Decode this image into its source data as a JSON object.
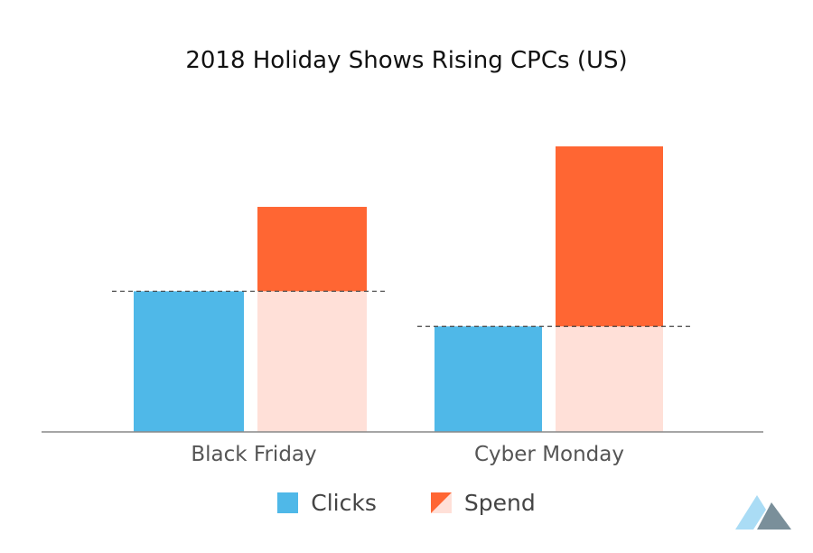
{
  "chart_data": {
    "type": "bar",
    "title": "2018 Holiday Shows Rising CPCs (US)",
    "categories": [
      "Black Friday",
      "Cyber Monday"
    ],
    "series": [
      {
        "name": "Clicks",
        "values": [
          100,
          75
        ]
      },
      {
        "name": "Spend",
        "values": [
          160,
          203
        ]
      }
    ],
    "baseline_reference": [
      100,
      75
    ],
    "ylim": [
      0,
      203
    ],
    "xlabel": "",
    "ylabel": "",
    "grid": false,
    "legend": "bottom-center",
    "colors": {
      "clicks": "#4fb8e8",
      "spend": "#ff6633",
      "spend_light": "#ffe0d8",
      "axis": "#888888",
      "dash": "#444444"
    }
  },
  "legend": {
    "clicks_label": "Clicks",
    "spend_label": "Spend"
  },
  "logo": {
    "name": "mountain-logo",
    "colors": [
      "#aadcf5",
      "#7a8f9a"
    ]
  }
}
